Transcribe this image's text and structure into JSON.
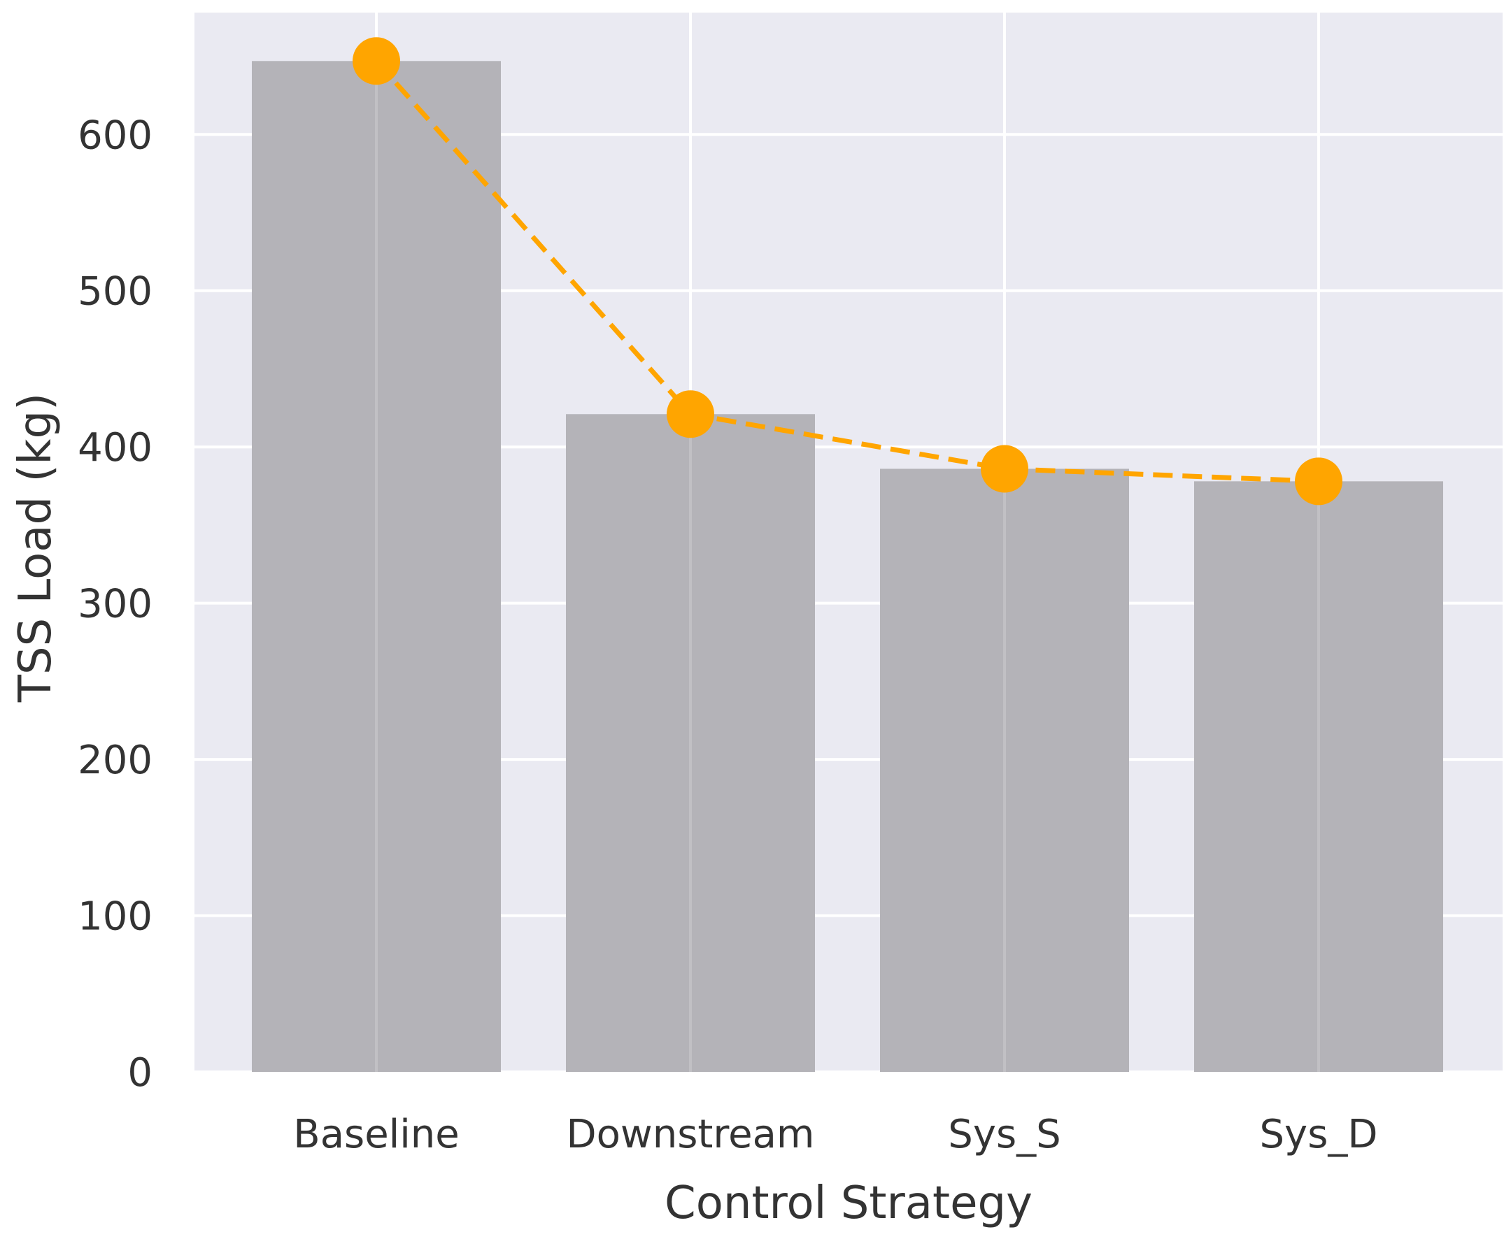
{
  "chart_data": {
    "type": "bar",
    "title": "",
    "xlabel": "Control Strategy",
    "ylabel": "TSS Load (kg)",
    "categories": [
      "Baseline",
      "Downstream",
      "Sys_S",
      "Sys_D"
    ],
    "values": [
      647,
      421,
      386,
      378
    ],
    "ylim": [
      0,
      678
    ],
    "yticks": [
      0,
      100,
      200,
      300,
      400,
      500,
      600
    ],
    "grid": true,
    "overlay_line": {
      "type": "line",
      "style": "dashed",
      "marker": "circle",
      "values": [
        647,
        421,
        386,
        378
      ]
    },
    "colors": {
      "bar": "#b4b3b8",
      "line": "#ffa500",
      "background": "#eaeaf2",
      "grid": "#ffffff"
    }
  }
}
